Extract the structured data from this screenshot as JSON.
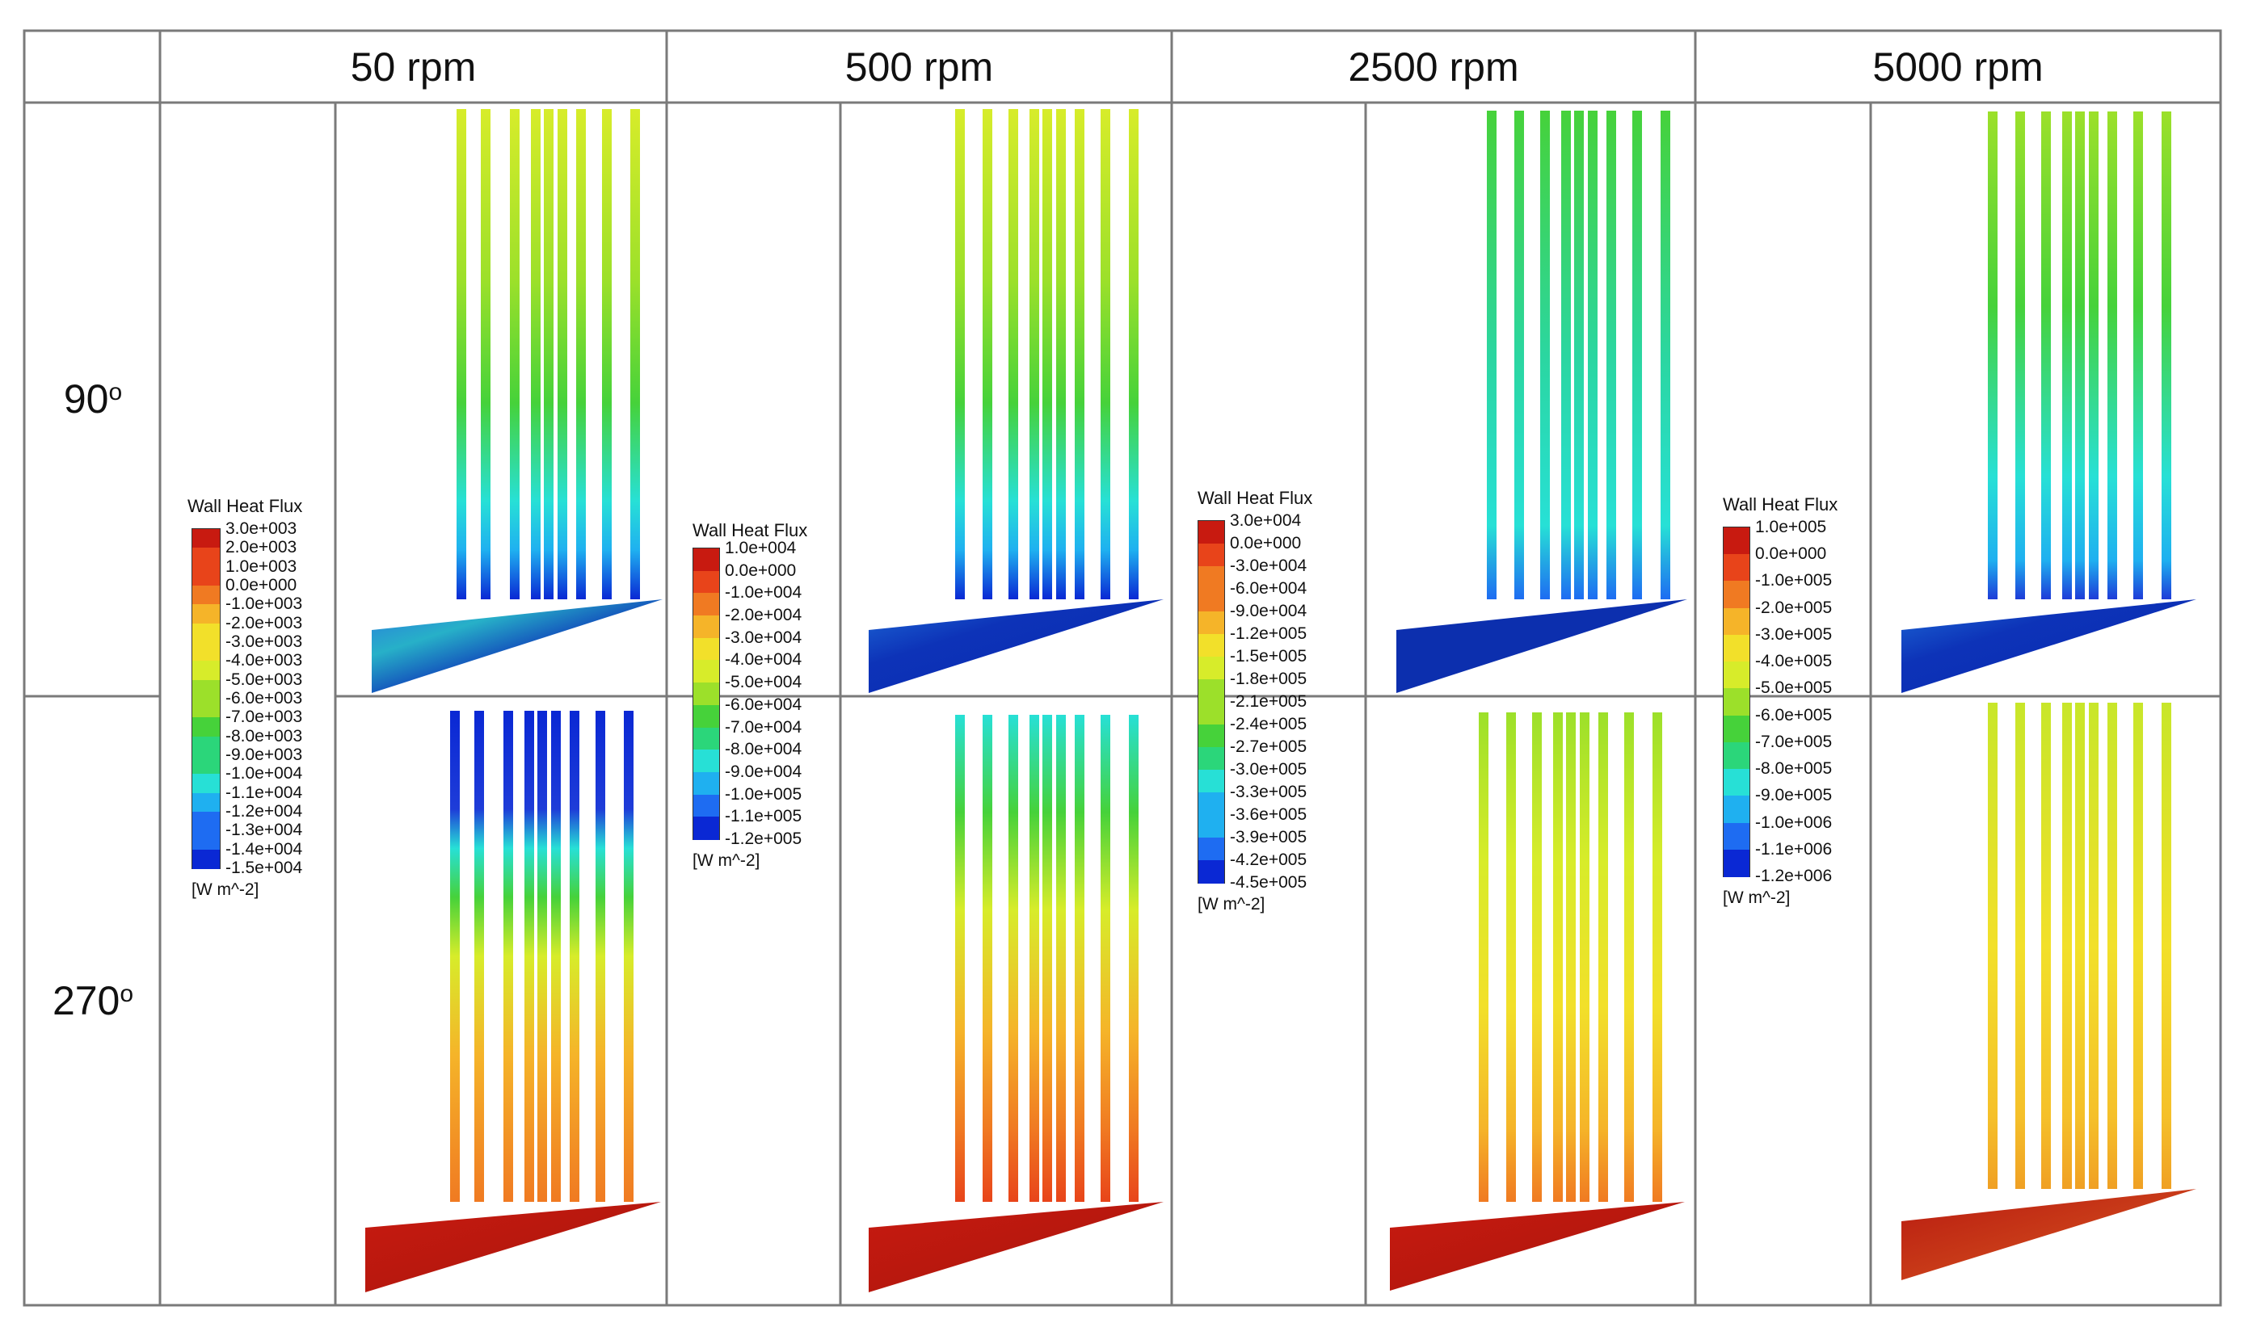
{
  "table": {
    "columns": [
      {
        "label": "50 rpm"
      },
      {
        "label": "500 rpm"
      },
      {
        "label": "2500 rpm"
      },
      {
        "label": "5000 rpm"
      }
    ],
    "rows": [
      {
        "label": "90",
        "degree": "o"
      },
      {
        "label": "270",
        "degree": "o"
      }
    ]
  },
  "legends": [
    {
      "title": "Wall Heat Flux",
      "unit": "[W m^-2]",
      "ticks": [
        "3.0e+003",
        "2.0e+003",
        "1.0e+003",
        "0.0e+000",
        "-1.0e+003",
        "-2.0e+003",
        "-3.0e+003",
        "-4.0e+003",
        "-5.0e+003",
        "-6.0e+003",
        "-7.0e+003",
        "-8.0e+003",
        "-9.0e+003",
        "-1.0e+004",
        "-1.1e+004",
        "-1.2e+004",
        "-1.3e+004",
        "-1.4e+004",
        "-1.5e+004"
      ]
    },
    {
      "title": "Wall Heat Flux",
      "unit": "[W m^-2]",
      "ticks": [
        "1.0e+004",
        "0.0e+000",
        "-1.0e+004",
        "-2.0e+004",
        "-3.0e+004",
        "-4.0e+004",
        "-5.0e+004",
        "-6.0e+004",
        "-7.0e+004",
        "-8.0e+004",
        "-9.0e+004",
        "-1.0e+005",
        "-1.1e+005",
        "-1.2e+005"
      ]
    },
    {
      "title": "Wall Heat Flux",
      "unit": "[W m^-2]",
      "ticks": [
        "3.0e+004",
        "0.0e+000",
        "-3.0e+004",
        "-6.0e+004",
        "-9.0e+004",
        "-1.2e+005",
        "-1.5e+005",
        "-1.8e+005",
        "-2.1e+005",
        "-2.4e+005",
        "-2.7e+005",
        "-3.0e+005",
        "-3.3e+005",
        "-3.6e+005",
        "-3.9e+005",
        "-4.2e+005",
        "-4.5e+005"
      ]
    },
    {
      "title": "Wall Heat Flux",
      "unit": "[W m^-2]",
      "ticks": [
        "1.0e+005",
        "0.0e+000",
        "-1.0e+005",
        "-2.0e+005",
        "-3.0e+005",
        "-4.0e+005",
        "-5.0e+005",
        "-6.0e+005",
        "-7.0e+005",
        "-8.0e+005",
        "-9.0e+005",
        "-1.0e+006",
        "-1.1e+006",
        "-1.2e+006"
      ]
    }
  ],
  "colors": {
    "scale": [
      "#0a28d4",
      "#1e6cf2",
      "#1fb0f0",
      "#27e0d6",
      "#2bd67a",
      "#46d23a",
      "#9ce02a",
      "#d7ec2a",
      "#f2e02a",
      "#f5b429",
      "#f07a22",
      "#e8441a",
      "#c81a10"
    ],
    "grid": "#7a7a7a",
    "cooling_90_low": "#0d33b8",
    "heating_270_low": "#b8180e"
  }
}
